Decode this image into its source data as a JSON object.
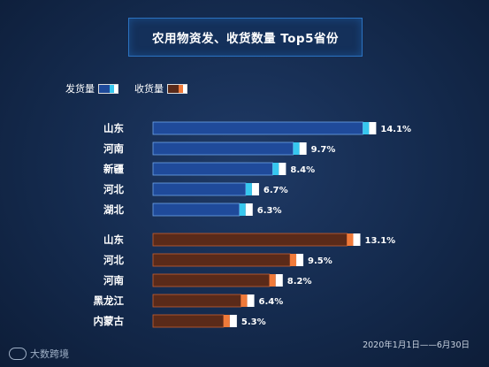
{
  "title": "农用物资发、收货数量 Top5省份",
  "legend": {
    "ship_label": "发货量",
    "receive_label": "收货量"
  },
  "colors": {
    "ship_bar": "#1f4a9a",
    "ship_border": "#6fa3e8",
    "ship_cap_a": "#37c7ee",
    "ship_cap_b": "#ffffff",
    "receive_bar": "#5a2a19",
    "receive_border": "#c95f2f",
    "receive_cap_a": "#ef7a3a",
    "receive_cap_b": "#ffffff"
  },
  "chart_data": [
    {
      "type": "bar",
      "orientation": "horizontal",
      "series_name": "发货量",
      "categories": [
        "山东",
        "河南",
        "新疆",
        "河北",
        "湖北"
      ],
      "values": [
        14.1,
        9.7,
        8.4,
        6.7,
        6.3
      ],
      "labels": [
        "14.1%",
        "9.7%",
        "8.4%",
        "6.7%",
        "6.3%"
      ],
      "unit": "%"
    },
    {
      "type": "bar",
      "orientation": "horizontal",
      "series_name": "收货量",
      "categories": [
        "山东",
        "河北",
        "河南",
        "黑龙江",
        "内蒙古"
      ],
      "values": [
        13.1,
        9.5,
        8.2,
        6.4,
        5.3
      ],
      "labels": [
        "13.1%",
        "9.5%",
        "8.2%",
        "6.4%",
        "5.3%"
      ],
      "unit": "%"
    }
  ],
  "footer": {
    "date_range": "2020年1月1日——6月30日",
    "logo_text": "大数跨境"
  }
}
